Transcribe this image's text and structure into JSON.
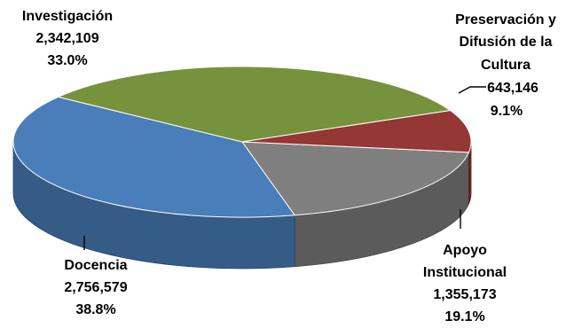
{
  "chart_data": {
    "type": "pie",
    "style": "3d",
    "title": "",
    "slices": [
      {
        "name": "Docencia",
        "value": 2756579,
        "value_label": "2,756,579",
        "percent": 38.8,
        "percent_label": "38.8%",
        "color": "#4a7ebb"
      },
      {
        "name": "Investigación",
        "value": 2342109,
        "value_label": "2,342,109",
        "percent": 33.0,
        "percent_label": "33.0%",
        "color": "#76923c"
      },
      {
        "name": "Preservación y Difusión de la Cultura",
        "name_lines": [
          "Preservación y",
          "Difusión de la",
          "Cultura"
        ],
        "value": 643146,
        "value_label": "643,146",
        "percent": 9.1,
        "percent_label": "9.1%",
        "color": "#953735"
      },
      {
        "name": "Apoyo Institucional",
        "name_lines": [
          "Apoyo",
          "Institucional"
        ],
        "value": 1355173,
        "value_label": "1,355,173",
        "percent": 19.1,
        "percent_label": "19.1%",
        "color": "#7f7f7f"
      }
    ]
  }
}
